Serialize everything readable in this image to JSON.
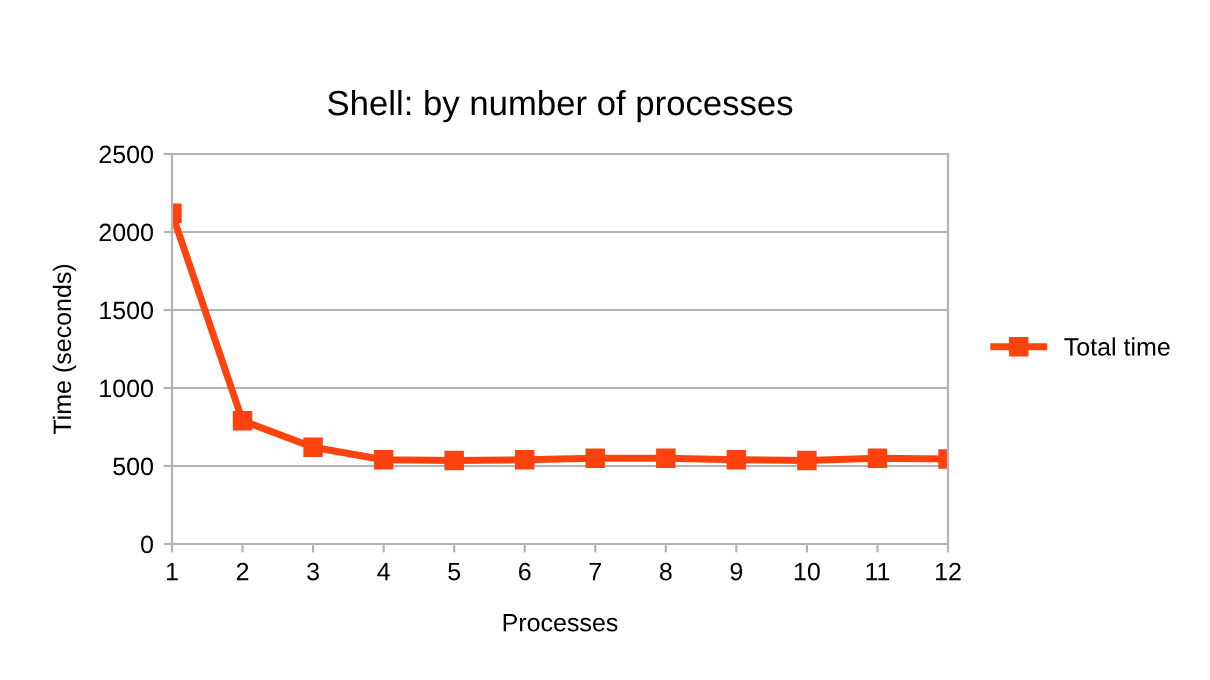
{
  "chart_data": {
    "type": "line",
    "title": "Shell: by number of processes",
    "xlabel": "Processes",
    "ylabel": "Time (seconds)",
    "x": [
      1,
      2,
      3,
      4,
      5,
      6,
      7,
      8,
      9,
      10,
      11,
      12
    ],
    "series": [
      {
        "name": "Total time",
        "color": "#ff420e",
        "values": [
          2120,
          790,
          620,
          540,
          535,
          540,
          550,
          550,
          540,
          535,
          550,
          545
        ]
      }
    ],
    "xlim": [
      1,
      12
    ],
    "xticks": [
      1,
      2,
      3,
      4,
      5,
      6,
      7,
      8,
      9,
      10,
      11,
      12
    ],
    "ylim": [
      0,
      2500
    ],
    "yticks": [
      0,
      500,
      1000,
      1500,
      2000,
      2500
    ],
    "grid": "y",
    "legend": "right",
    "marker": "square",
    "line_style": "solid"
  }
}
